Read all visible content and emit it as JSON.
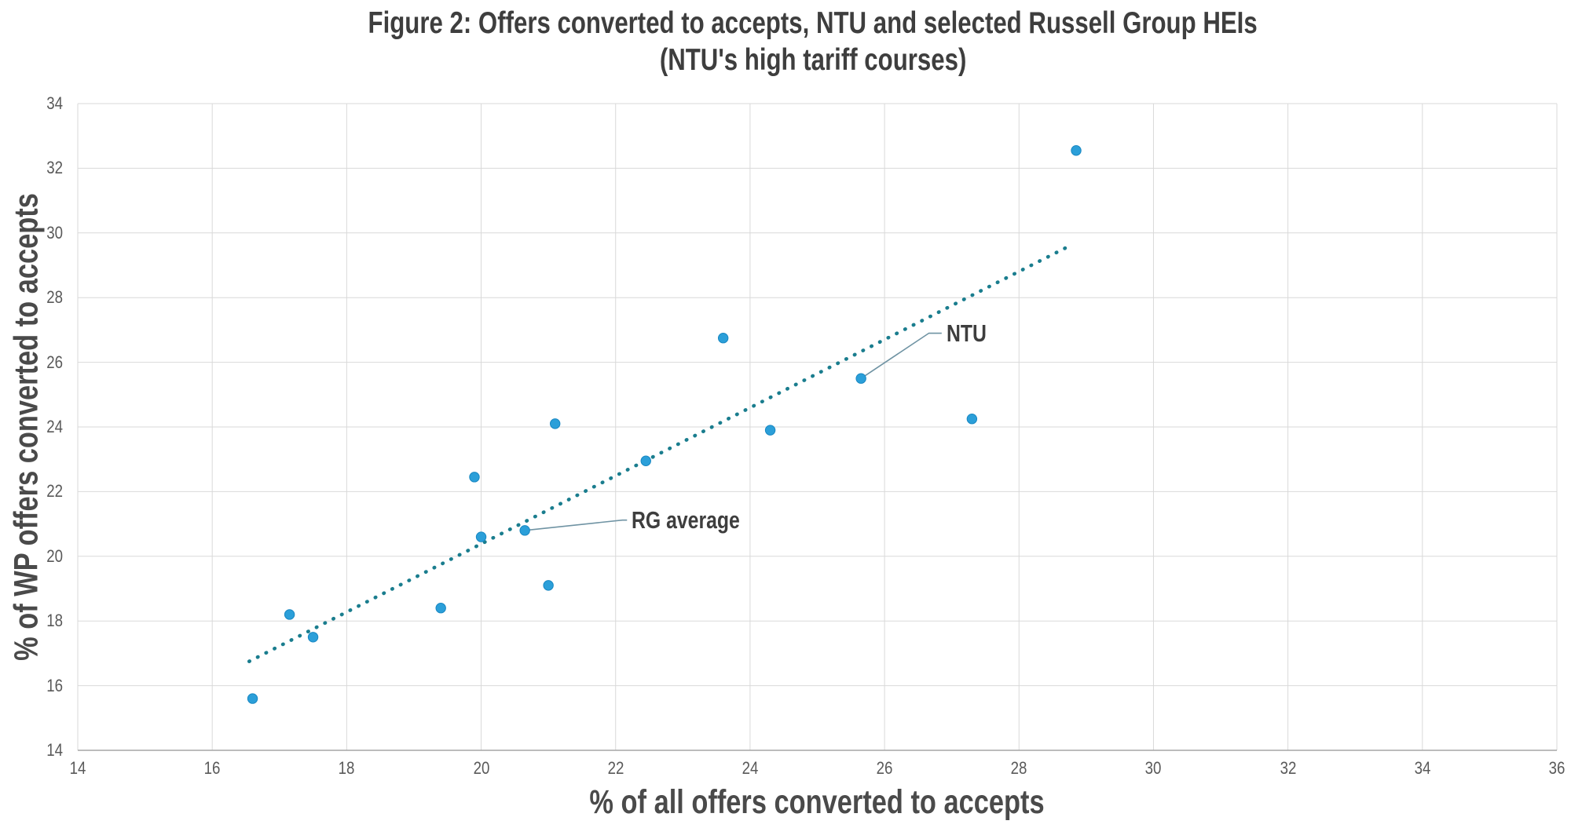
{
  "figure": {
    "title_line1": "Figure 2: Offers converted to accepts, NTU and selected Russell Group HEIs",
    "title_line2": "(NTU's high tariff courses)"
  },
  "chart_data": {
    "type": "scatter",
    "title": "Figure 2: Offers converted to accepts, NTU and selected Russell Group HEIs (NTU's high tariff courses)",
    "xlabel": "% of all offers converted to accepts",
    "ylabel": "% of WP offers converted to accepts",
    "xlim": [
      14,
      36
    ],
    "ylim": [
      14,
      34
    ],
    "x_ticks": [
      14,
      16,
      18,
      20,
      22,
      24,
      26,
      28,
      30,
      32,
      34,
      36
    ],
    "y_ticks": [
      14,
      16,
      18,
      20,
      22,
      24,
      26,
      28,
      30,
      32,
      34
    ],
    "grid": true,
    "legend": "none",
    "points": [
      [
        16.6,
        15.6
      ],
      [
        17.15,
        18.2
      ],
      [
        17.5,
        17.5
      ],
      [
        19.4,
        18.4
      ],
      [
        19.9,
        22.45
      ],
      [
        20.0,
        20.6
      ],
      [
        20.65,
        20.8
      ],
      [
        21.0,
        19.1
      ],
      [
        21.1,
        24.1
      ],
      [
        22.45,
        22.95
      ],
      [
        23.6,
        26.75
      ],
      [
        24.3,
        23.9
      ],
      [
        25.65,
        25.5
      ],
      [
        27.3,
        24.25
      ],
      [
        28.85,
        32.55
      ]
    ],
    "trendline": {
      "style": "dotted",
      "from": [
        16.55,
        16.75
      ],
      "to": [
        28.8,
        29.65
      ]
    },
    "annotations": [
      {
        "label": "NTU",
        "point": [
          25.65,
          25.5
        ],
        "elbow": [
          26.66,
          26.9
        ],
        "text": [
          26.92,
          26.9
        ]
      },
      {
        "label": "RG average",
        "point": [
          20.65,
          20.8
        ],
        "elbow": [
          22.1,
          21.12
        ],
        "text": [
          22.24,
          21.12
        ]
      }
    ],
    "colors": {
      "point_fill": "#2b9fd9",
      "point_stroke": "#1887c2",
      "trendline": "#1a7d8e",
      "grid": "#d9d9d9",
      "axis_line": "#a6a6a6",
      "tick_text": "#595959",
      "title_text": "#3e3e3e",
      "callout_line": "#6f93a3"
    }
  }
}
